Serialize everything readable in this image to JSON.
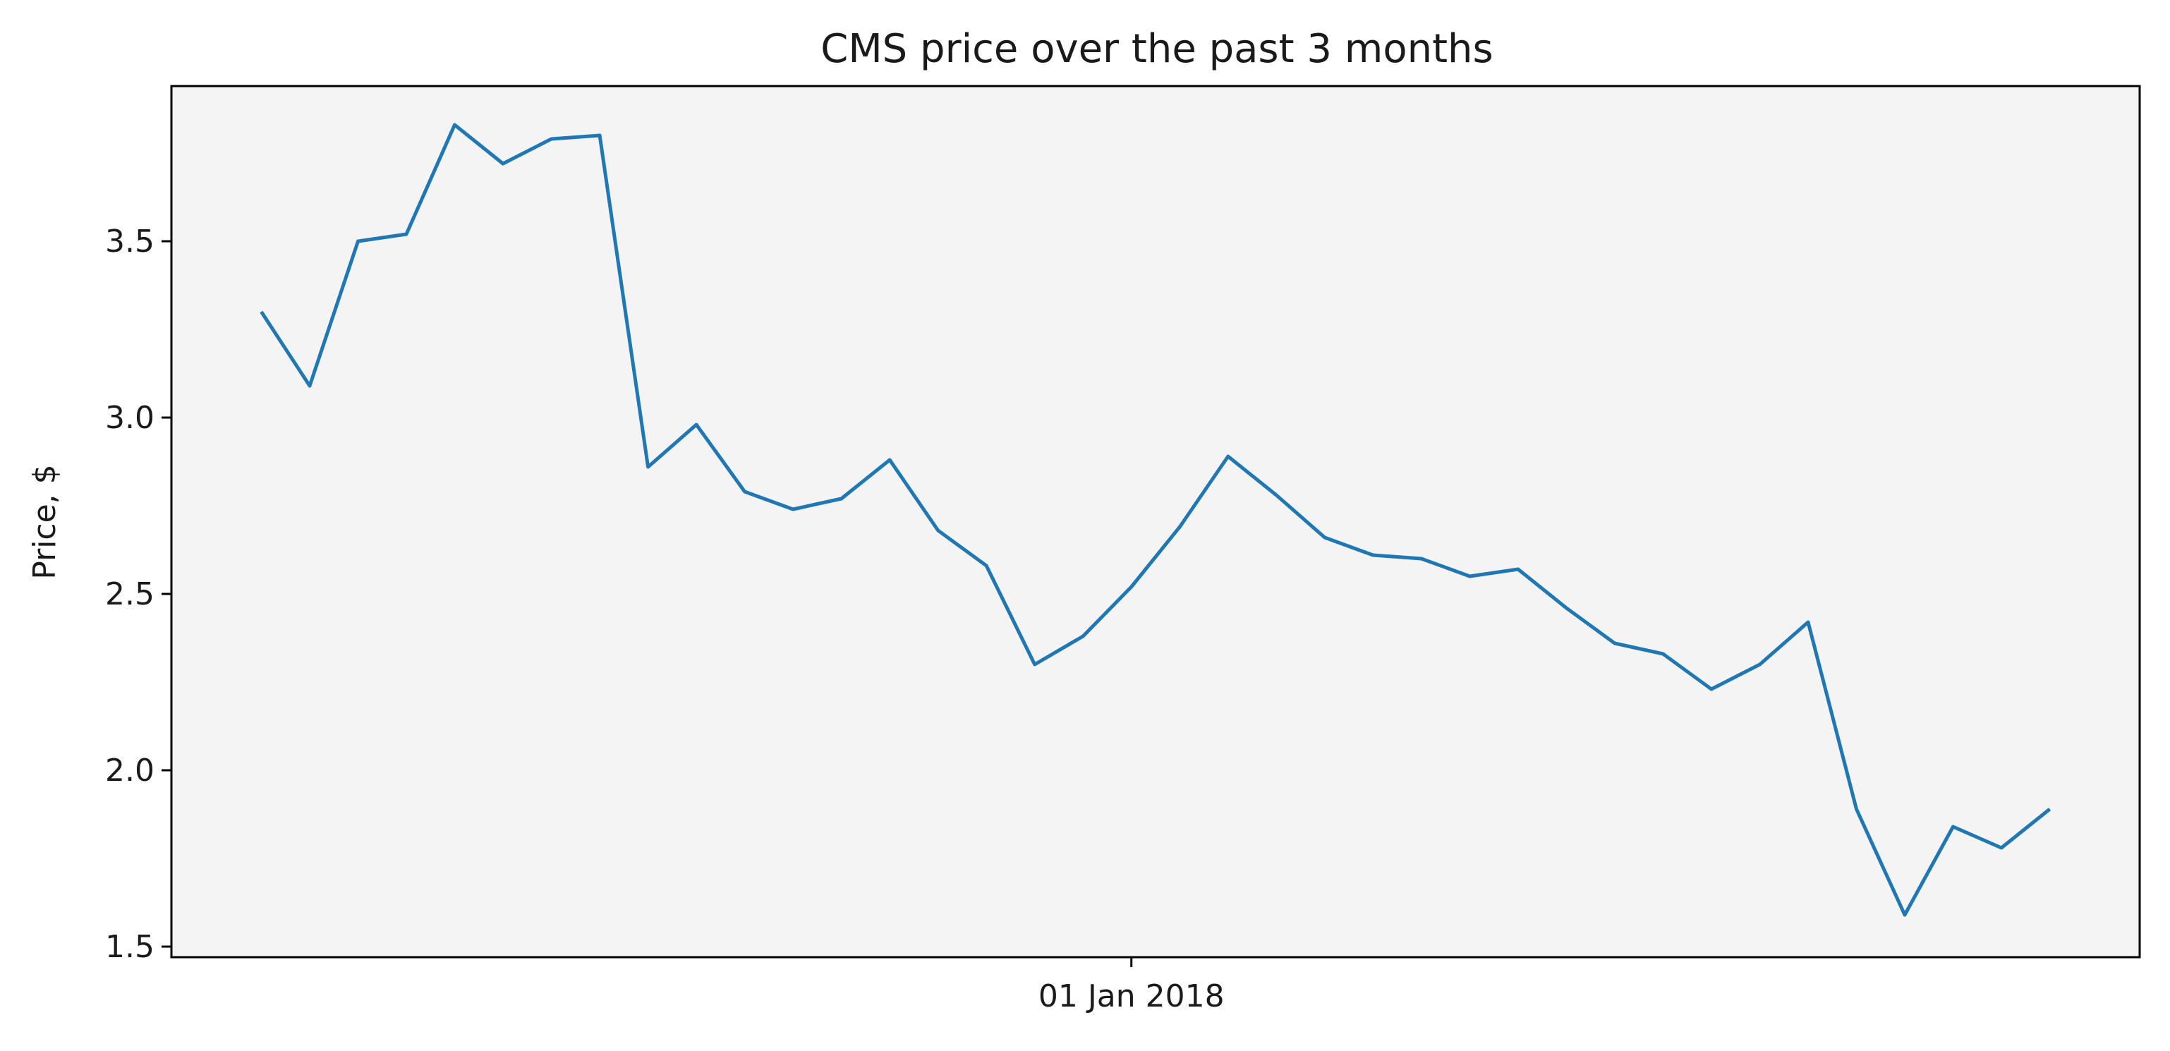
{
  "chart_data": {
    "type": "line",
    "title": "CMS price over the past 3 months",
    "xlabel": "",
    "ylabel": "Price, $",
    "x_tick_labels": [
      {
        "label": "01 Jan 2018",
        "index": 18
      }
    ],
    "y_ticks": [
      {
        "value": 1.5,
        "label": "1.5"
      },
      {
        "value": 2.0,
        "label": "2.0"
      },
      {
        "value": 2.5,
        "label": "2.5"
      },
      {
        "value": 3.0,
        "label": "3.0"
      },
      {
        "value": 3.5,
        "label": "3.5"
      }
    ],
    "ylim": [
      1.47,
      3.94
    ],
    "xlim_index": [
      -1.86,
      38.86
    ],
    "grid": false,
    "colors": {
      "line": "#1f77b4",
      "plot_background": "#f4f4f4",
      "axes": "#000000"
    },
    "series": [
      {
        "values": [
          3.3,
          3.09,
          3.5,
          3.52,
          3.83,
          3.72,
          3.79,
          3.8,
          2.86,
          2.98,
          2.79,
          2.74,
          2.77,
          2.88,
          2.68,
          2.58,
          2.3,
          2.38,
          2.52,
          2.69,
          2.89,
          2.78,
          2.66,
          2.61,
          2.6,
          2.55,
          2.57,
          2.46,
          2.36,
          2.33,
          2.23,
          2.3,
          2.42,
          1.89,
          1.59,
          1.84,
          1.78,
          1.89
        ]
      }
    ]
  }
}
